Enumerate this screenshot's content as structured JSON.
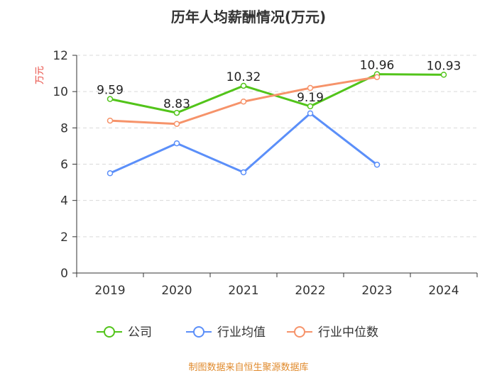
{
  "chart_data": {
    "type": "line",
    "title": "历年人均薪酬情况(万元)",
    "unit_label": "万元",
    "categories": [
      "2019",
      "2020",
      "2021",
      "2022",
      "2023",
      "2024"
    ],
    "ylim": [
      0,
      12
    ],
    "yticks": [
      0,
      2,
      4,
      6,
      8,
      10,
      12
    ],
    "grid": true,
    "legend_position": "bottom",
    "series": [
      {
        "name": "公司",
        "color": "#52c41a",
        "values": [
          9.59,
          8.83,
          10.32,
          9.19,
          10.96,
          10.93
        ],
        "labels": [
          "9.59",
          "8.83",
          "10.32",
          "9.19",
          "10.96",
          "10.93"
        ]
      },
      {
        "name": "行业均值",
        "color": "#5b8ff9",
        "values": [
          5.5,
          7.15,
          5.55,
          8.8,
          5.97,
          null
        ]
      },
      {
        "name": "行业中位数",
        "color": "#f6936a",
        "values": [
          8.4,
          8.22,
          9.45,
          10.2,
          10.8,
          null
        ]
      }
    ]
  },
  "footer": {
    "text": "制图数据来自恒生聚源数据库",
    "color": "#e08a2c"
  }
}
